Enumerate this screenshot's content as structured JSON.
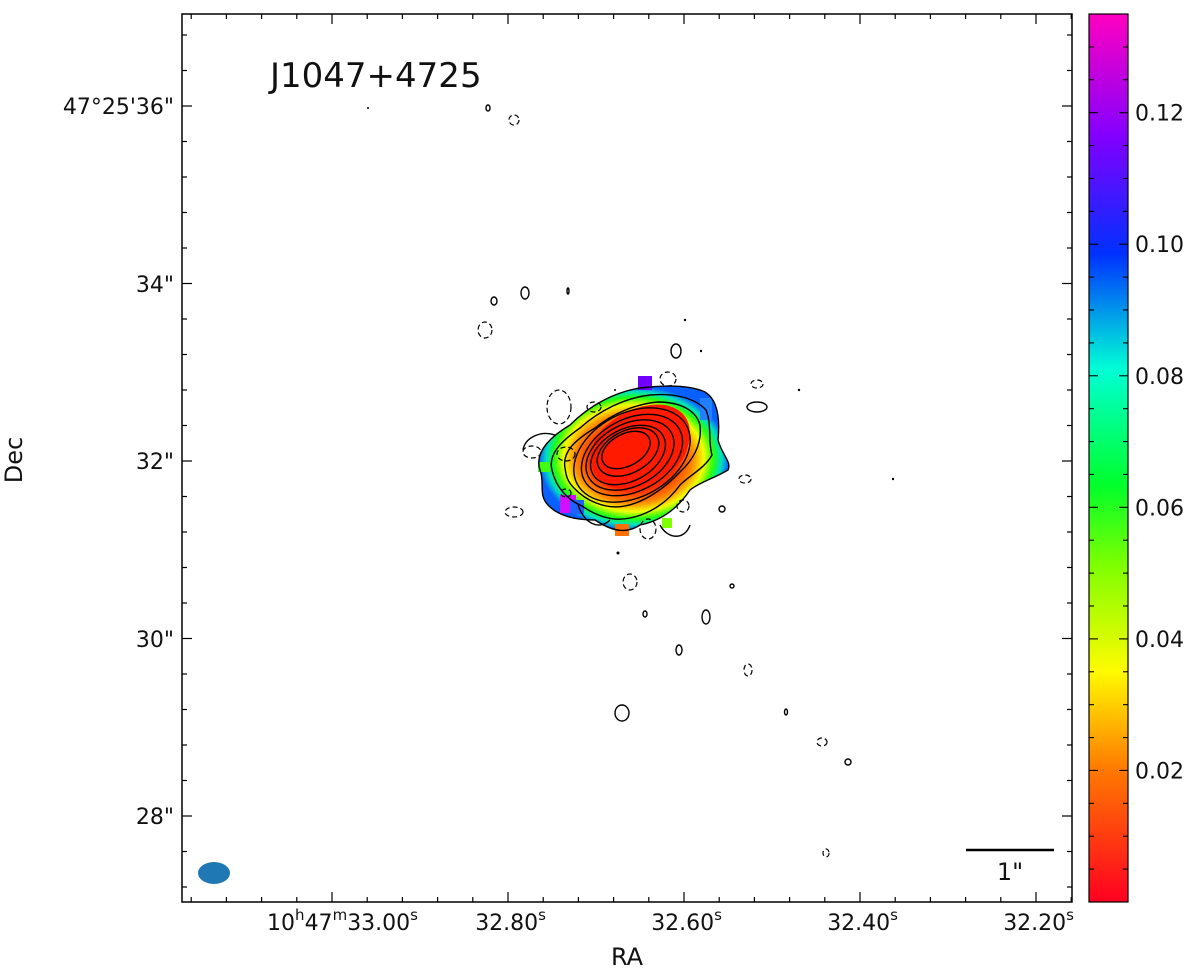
{
  "chart_data": {
    "type": "heatmap",
    "title": "J1047+4725",
    "xlabel": "RA",
    "ylabel": "Dec",
    "x_ticks": [
      {
        "h": "10",
        "m": "47",
        "s": "33.00",
        "full": true
      },
      {
        "s": "32.80"
      },
      {
        "s": "32.60"
      },
      {
        "s": "32.40"
      },
      {
        "s": "32.20"
      }
    ],
    "y_ticks": [
      "47°25'36\"",
      "34\"",
      "32\"",
      "30\"",
      "28\""
    ],
    "colorbar": {
      "colormap": "gist_rainbow_r",
      "range": [
        0.0,
        0.135
      ],
      "ticks": [
        "0.02",
        "0.04",
        "0.06",
        "0.08",
        "0.10",
        "0.12"
      ],
      "tick_values": [
        0.02,
        0.04,
        0.06,
        0.08,
        0.1,
        0.12
      ]
    },
    "scale_bar_label": "1\"",
    "beam": {
      "color": "#1f77b4"
    },
    "contours": "solid positive levels, dashed negative levels",
    "source": {
      "center_ra_s": 32.665,
      "center_dec_arcsec": 32.1,
      "peak_value": 0.0,
      "edge_value": 0.13
    }
  }
}
